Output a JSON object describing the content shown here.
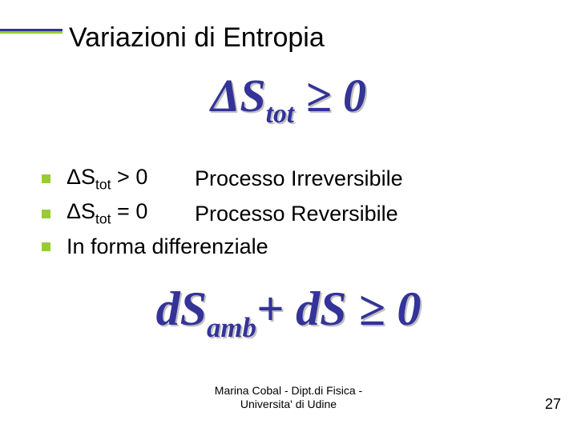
{
  "colors": {
    "accent_blue": "#333399",
    "accent_green": "#99cc33",
    "text": "#000000",
    "shadow": "#c0c0c0",
    "background": "#ffffff"
  },
  "title": "Variazioni di Entropia",
  "formula_main": {
    "delta": "Δ",
    "S": "S",
    "sub": "tot",
    "rel": " ≥ 0",
    "fontsize_pt": 58
  },
  "bullets": [
    {
      "left_pre": "ΔS",
      "left_sub": "tot",
      "left_post": " > 0",
      "right": "Processo Irreversibile"
    },
    {
      "left_pre": "ΔS",
      "left_sub": "tot",
      "left_post": " = 0",
      "right": "Processo Reversibile"
    },
    {
      "full": "In forma differenziale"
    }
  ],
  "formula_diff": {
    "d1": "dS",
    "sub1": "amb",
    "plus": "+ ",
    "d2": "dS ",
    "rel": "≥ 0",
    "fontsize_pt": 60
  },
  "footer": {
    "line1": "Marina Cobal - Dipt.di Fisica -",
    "line2": "Universita' di Udine"
  },
  "page_number": "27"
}
